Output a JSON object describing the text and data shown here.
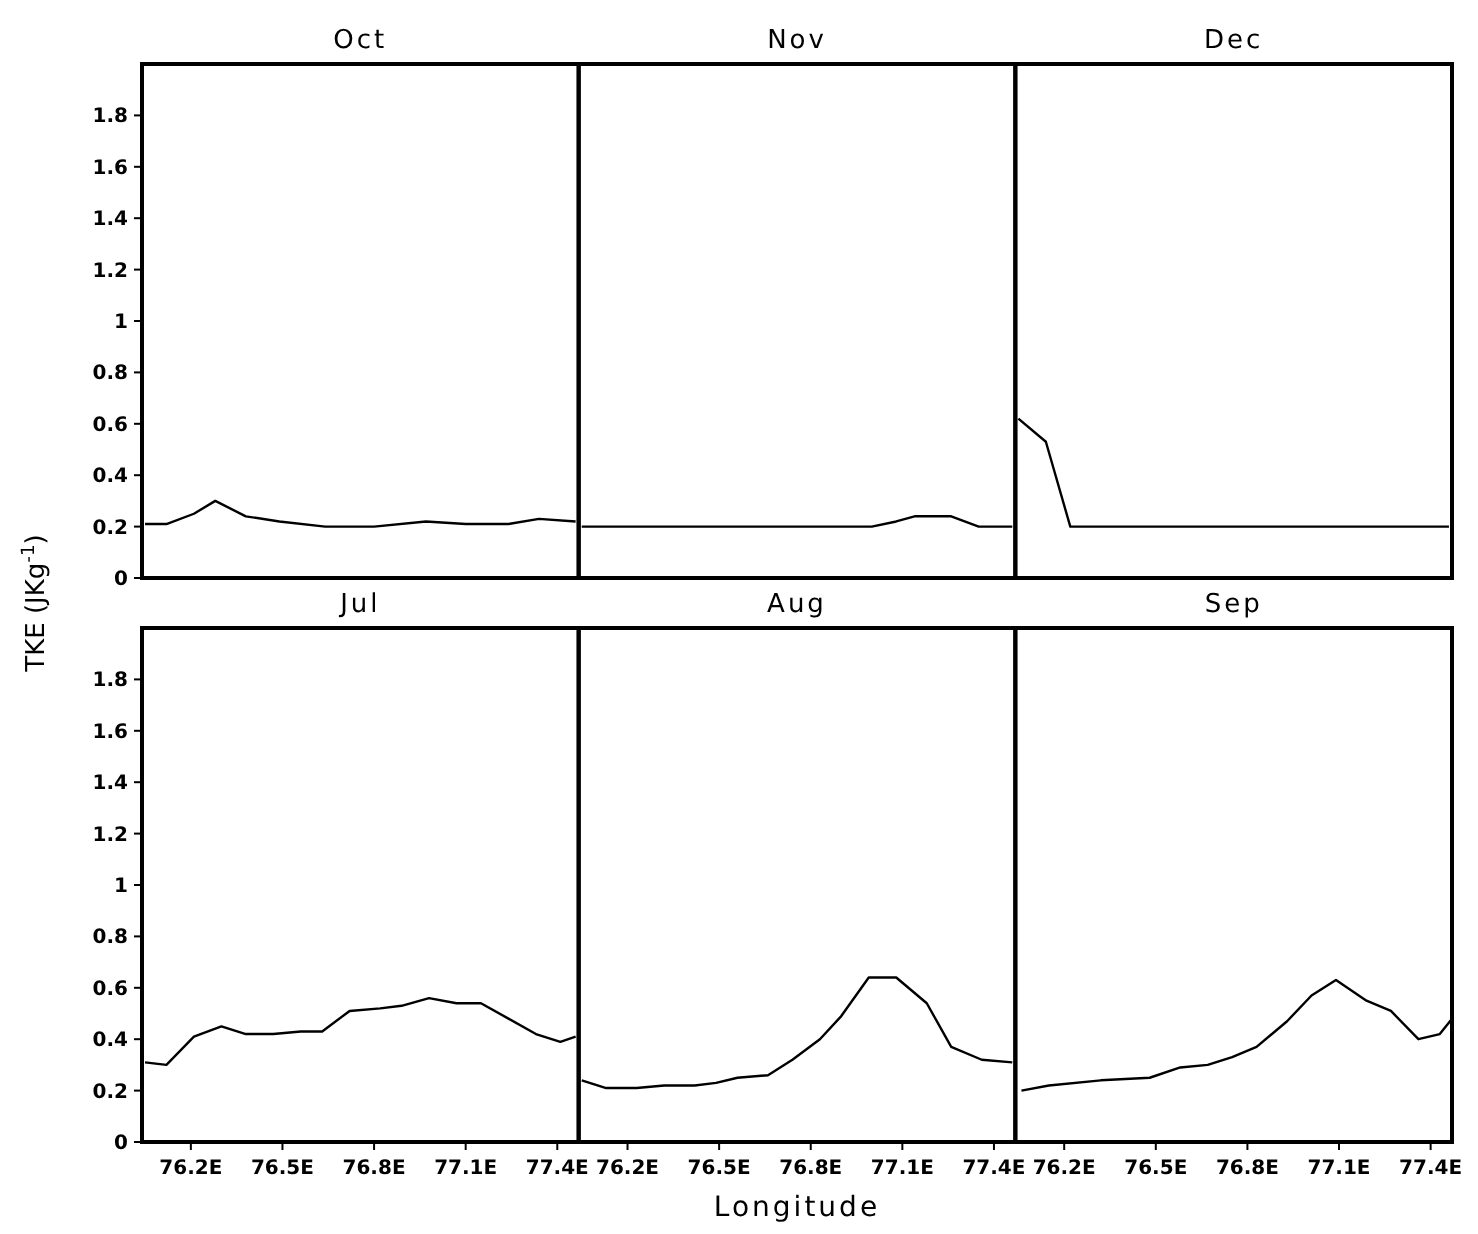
{
  "chart_data": [
    {
      "type": "line",
      "title": "Oct",
      "ylabel": "TKE (JKg$^{-1}$)",
      "xlim": [
        76.04,
        77.47
      ],
      "ylim": [
        0,
        2
      ],
      "yticks": [
        0,
        0.2,
        0.4,
        0.6,
        0.8,
        1,
        1.2,
        1.4,
        1.6,
        1.8
      ],
      "tick_labels": "y",
      "series": [
        {
          "color": "#000000",
          "x": [
            76.05,
            76.12,
            76.21,
            76.28,
            76.38,
            76.49,
            76.64,
            76.8,
            76.97,
            77.1,
            77.24,
            77.34,
            77.46
          ],
          "values": [
            0.21,
            0.21,
            0.25,
            0.3,
            0.24,
            0.22,
            0.2,
            0.2,
            0.22,
            0.21,
            0.21,
            0.23,
            0.22
          ]
        }
      ]
    },
    {
      "type": "line",
      "title": "Nov",
      "xlim": [
        76.04,
        77.47
      ],
      "ylim": [
        0,
        2
      ],
      "tick_labels": false,
      "series": [
        {
          "color": "#000000",
          "x": [
            76.05,
            77.0,
            77.08,
            77.14,
            77.26,
            77.35,
            77.46
          ],
          "values": [
            0.2,
            0.2,
            0.22,
            0.24,
            0.24,
            0.2,
            0.2
          ]
        }
      ]
    },
    {
      "type": "line",
      "title": "Dec",
      "xlim": [
        76.04,
        77.47
      ],
      "ylim": [
        0,
        2
      ],
      "tick_labels": false,
      "series": [
        {
          "color": "#000000",
          "x": [
            76.05,
            76.14,
            76.22,
            77.46
          ],
          "values": [
            0.62,
            0.53,
            0.2,
            0.2
          ]
        }
      ]
    },
    {
      "type": "line",
      "title": "Jul",
      "xlim": [
        76.04,
        77.47
      ],
      "ylim": [
        0,
        2
      ],
      "yticks": [
        0,
        0.2,
        0.4,
        0.6,
        0.8,
        1,
        1.2,
        1.4,
        1.6,
        1.8
      ],
      "xticks": [
        {
          "value": 76.2,
          "label": "76.2E"
        },
        {
          "value": 76.5,
          "label": "76.5E"
        },
        {
          "value": 76.8,
          "label": "76.8E"
        },
        {
          "value": 77.1,
          "label": "77.1E"
        },
        {
          "value": 77.4,
          "label": "77.4E"
        }
      ],
      "series": [
        {
          "color": "#000000",
          "x": [
            76.05,
            76.12,
            76.21,
            76.3,
            76.38,
            76.47,
            76.56,
            76.63,
            76.72,
            76.82,
            76.89,
            76.98,
            77.07,
            77.15,
            77.24,
            77.33,
            77.41,
            77.46
          ],
          "values": [
            0.31,
            0.3,
            0.41,
            0.45,
            0.42,
            0.42,
            0.43,
            0.43,
            0.51,
            0.52,
            0.53,
            0.56,
            0.54,
            0.54,
            0.48,
            0.42,
            0.39,
            0.41
          ]
        }
      ]
    },
    {
      "type": "line",
      "title": "Aug",
      "xlabel": "Longitude",
      "xlim": [
        76.04,
        77.47
      ],
      "ylim": [
        0,
        2
      ],
      "tick_labels": "x",
      "xticks": [
        {
          "value": 76.2,
          "label": "76.2E"
        },
        {
          "value": 76.5,
          "label": "76.5E"
        },
        {
          "value": 76.8,
          "label": "76.8E"
        },
        {
          "value": 77.1,
          "label": "77.1E"
        },
        {
          "value": 77.4,
          "label": "77.4E"
        }
      ],
      "series": [
        {
          "color": "#000000",
          "x": [
            76.05,
            76.13,
            76.23,
            76.32,
            76.42,
            76.49,
            76.56,
            76.66,
            76.74,
            76.83,
            76.9,
            76.99,
            77.08,
            77.18,
            77.26,
            77.36,
            77.46
          ],
          "values": [
            0.24,
            0.21,
            0.21,
            0.22,
            0.22,
            0.23,
            0.25,
            0.26,
            0.32,
            0.4,
            0.49,
            0.64,
            0.64,
            0.54,
            0.37,
            0.32,
            0.31
          ]
        }
      ]
    },
    {
      "type": "line",
      "title": "Sep",
      "xlim": [
        76.04,
        77.47
      ],
      "ylim": [
        0,
        2
      ],
      "tick_labels": "x",
      "xticks": [
        {
          "value": 76.2,
          "label": "76.2E"
        },
        {
          "value": 76.5,
          "label": "76.5E"
        },
        {
          "value": 76.8,
          "label": "76.8E"
        },
        {
          "value": 77.1,
          "label": "77.1E"
        },
        {
          "value": 77.4,
          "label": "77.4E"
        }
      ],
      "series": [
        {
          "color": "#000000",
          "x": [
            76.06,
            76.15,
            76.32,
            76.48,
            76.58,
            76.67,
            76.75,
            76.83,
            76.93,
            77.01,
            77.09,
            77.19,
            77.27,
            77.36,
            77.43,
            77.47
          ],
          "values": [
            0.2,
            0.22,
            0.24,
            0.25,
            0.29,
            0.3,
            0.33,
            0.37,
            0.47,
            0.57,
            0.63,
            0.55,
            0.51,
            0.4,
            0.42,
            0.48
          ]
        }
      ]
    }
  ]
}
